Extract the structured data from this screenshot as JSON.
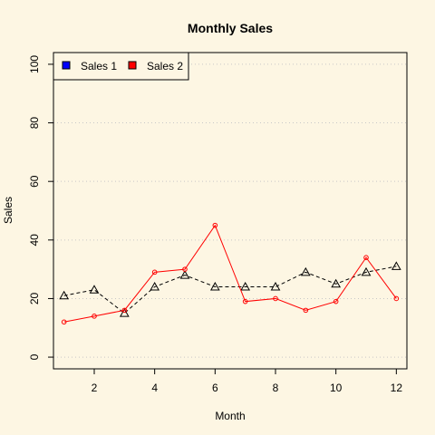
{
  "chart_data": {
    "type": "line",
    "title": "Monthly Sales",
    "xlabel": "Month",
    "ylabel": "Sales",
    "xlim": [
      0.65,
      12.35
    ],
    "ylim": [
      -4,
      104
    ],
    "xticks": [
      2,
      4,
      6,
      8,
      10,
      12
    ],
    "yticks": [
      0,
      20,
      40,
      60,
      80,
      100
    ],
    "grid": "horizontal dotted",
    "legend": "top-left",
    "x": [
      1,
      2,
      3,
      4,
      5,
      6,
      7,
      8,
      9,
      10,
      11,
      12
    ],
    "series": [
      {
        "name": "Sales 1",
        "values": [
          21,
          23,
          15,
          24,
          28,
          24,
          24,
          24,
          29,
          25,
          29,
          31
        ],
        "color": "#000000",
        "legend_color": "#0000ff",
        "line": "dashed",
        "marker": "triangle"
      },
      {
        "name": "Sales 2",
        "values": [
          12,
          14,
          16,
          29,
          30,
          45,
          19,
          20,
          16,
          19,
          34,
          20
        ],
        "color": "#ff0000",
        "legend_color": "#ff0000",
        "line": "solid",
        "marker": "circle"
      }
    ]
  }
}
